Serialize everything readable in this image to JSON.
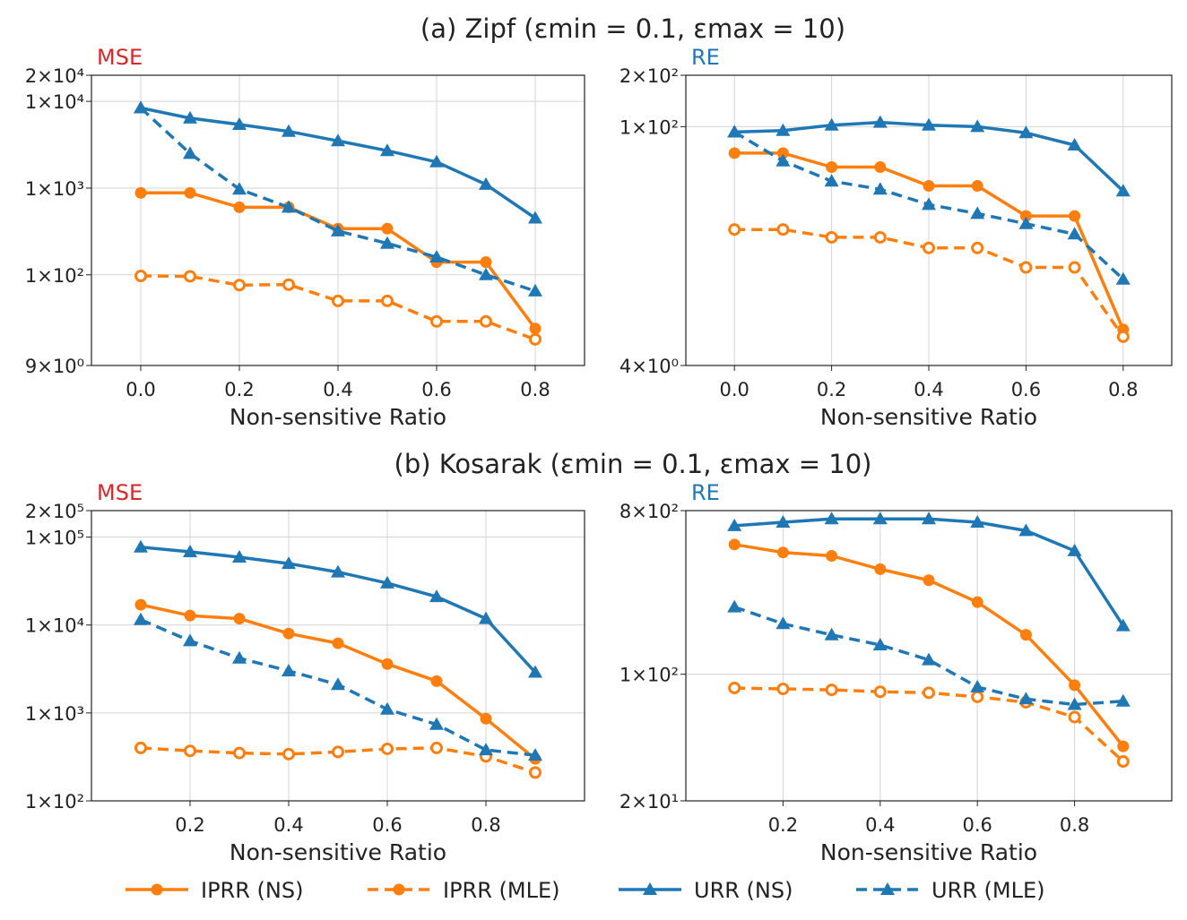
{
  "chart_data": [
    {
      "type": "line",
      "title": "(a) Zipf (εmin = 0.1, εmax = 10)",
      "metric": "MSE",
      "xlabel": "Non-sensitive Ratio",
      "ylabel": "MSE",
      "yscale": "log",
      "x": [
        0.0,
        0.1,
        0.2,
        0.3,
        0.4,
        0.5,
        0.6,
        0.7,
        0.8
      ],
      "xlim": [
        -0.1,
        0.9
      ],
      "ylim": [
        9,
        20000
      ],
      "xticks": [
        "0.0",
        "0.2",
        "0.4",
        "0.6",
        "0.8"
      ],
      "yticks": [
        "2×10⁴",
        "1×10⁴",
        "1×10³",
        "1×10²",
        "9×10⁰"
      ],
      "series": [
        {
          "name": "IPRR (NS)",
          "values": [
            880,
            880,
            600,
            600,
            340,
            340,
            140,
            140,
            24
          ]
        },
        {
          "name": "IPRR (MLE)",
          "values": [
            97,
            96,
            76,
            77,
            50,
            50,
            29,
            29,
            18
          ]
        },
        {
          "name": "URR (NS)",
          "values": [
            8400,
            6400,
            5400,
            4500,
            3500,
            2700,
            2000,
            1100,
            450
          ]
        },
        {
          "name": "URR (MLE)",
          "values": [
            8400,
            2500,
            970,
            600,
            320,
            230,
            160,
            100,
            65
          ]
        }
      ]
    },
    {
      "type": "line",
      "title": "(a) Zipf (εmin = 0.1, εmax = 10)",
      "metric": "RE",
      "xlabel": "Non-sensitive Ratio",
      "ylabel": "RE",
      "yscale": "log",
      "x": [
        0.0,
        0.1,
        0.2,
        0.3,
        0.4,
        0.5,
        0.6,
        0.7,
        0.8
      ],
      "xlim": [
        -0.1,
        0.9
      ],
      "ylim": [
        4,
        200
      ],
      "xticks": [
        "0.0",
        "0.2",
        "0.4",
        "0.6",
        "0.8"
      ],
      "yticks": [
        "2×10²",
        "1×10²",
        "4×10⁰"
      ],
      "series": [
        {
          "name": "IPRR (NS)",
          "values": [
            70,
            70,
            58,
            58,
            45,
            45,
            30,
            30,
            6.5
          ]
        },
        {
          "name": "IPRR (MLE)",
          "values": [
            25,
            25,
            22.5,
            22.5,
            19.5,
            19.5,
            15,
            15,
            5.9
          ]
        },
        {
          "name": "URR (NS)",
          "values": [
            93,
            95,
            102,
            106,
            102,
            100,
            92,
            78,
            42
          ]
        },
        {
          "name": "URR (MLE)",
          "values": [
            93,
            63,
            48,
            43,
            35,
            31,
            27,
            23.5,
            12.8
          ]
        }
      ]
    },
    {
      "type": "line",
      "title": "(b) Kosarak (εmin = 0.1, εmax = 10)",
      "metric": "MSE",
      "xlabel": "Non-sensitive Ratio",
      "ylabel": "MSE",
      "yscale": "log",
      "x": [
        0.1,
        0.2,
        0.3,
        0.4,
        0.5,
        0.6,
        0.7,
        0.8,
        0.9
      ],
      "xlim": [
        0.0,
        1.0
      ],
      "ylim": [
        100,
        200000
      ],
      "xticks": [
        "0.2",
        "0.4",
        "0.6",
        "0.8"
      ],
      "yticks": [
        "2×10⁵",
        "1×10⁵",
        "1×10⁴",
        "1×10³",
        "1×10²"
      ],
      "series": [
        {
          "name": "IPRR (NS)",
          "values": [
            17000,
            12800,
            11800,
            8000,
            6200,
            3600,
            2300,
            860,
            300
          ]
        },
        {
          "name": "IPRR (MLE)",
          "values": [
            400,
            370,
            350,
            340,
            360,
            390,
            400,
            320,
            210
          ]
        },
        {
          "name": "URR (NS)",
          "values": [
            77000,
            68000,
            59000,
            50000,
            40000,
            30000,
            21000,
            11800,
            2900
          ]
        },
        {
          "name": "URR (MLE)",
          "values": [
            11500,
            6600,
            4200,
            3000,
            2100,
            1100,
            740,
            380,
            330
          ]
        }
      ]
    },
    {
      "type": "line",
      "title": "(b) Kosarak (εmin = 0.1, εmax = 10)",
      "metric": "RE",
      "xlabel": "Non-sensitive Ratio",
      "ylabel": "RE",
      "yscale": "log",
      "x": [
        0.1,
        0.2,
        0.3,
        0.4,
        0.5,
        0.6,
        0.7,
        0.8,
        0.9
      ],
      "xlim": [
        0.0,
        1.0
      ],
      "ylim": [
        20,
        800
      ],
      "xticks": [
        "0.2",
        "0.4",
        "0.6",
        "0.8"
      ],
      "yticks": [
        "8×10²",
        "1×10²",
        "2×10¹"
      ],
      "series": [
        {
          "name": "IPRR (NS)",
          "values": [
            520,
            470,
            450,
            380,
            330,
            250,
            165,
            87,
            40
          ]
        },
        {
          "name": "IPRR (MLE)",
          "values": [
            84,
            83,
            82,
            80,
            79,
            75,
            70,
            58,
            33
          ]
        },
        {
          "name": "URR (NS)",
          "values": [
            660,
            690,
            720,
            720,
            720,
            690,
            620,
            480,
            185
          ]
        },
        {
          "name": "URR (MLE)",
          "values": [
            235,
            190,
            165,
            145,
            120,
            85,
            73,
            68,
            71
          ]
        }
      ]
    }
  ],
  "legend": {
    "entries": [
      "IPRR (NS)",
      "IPRR (MLE)",
      "URR (NS)",
      "URR (MLE)"
    ],
    "colors": {
      "IPRR": "#ff7f0e",
      "URR": "#1f77b4"
    }
  }
}
